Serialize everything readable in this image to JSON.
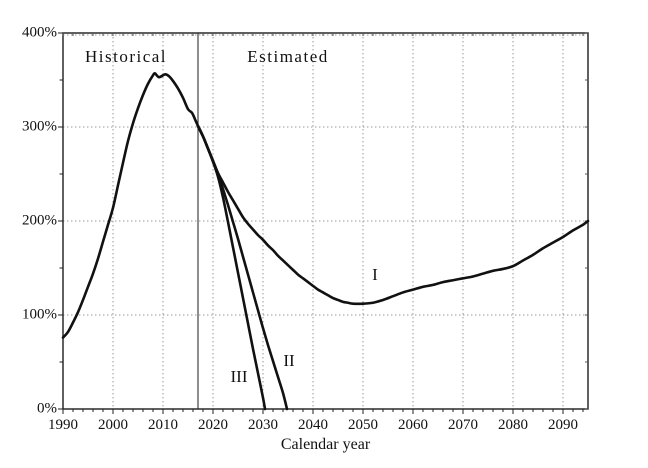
{
  "chart_data": {
    "type": "line",
    "title": "",
    "xlabel": "Calendar year",
    "ylabel": "",
    "x_range": [
      1990,
      2095
    ],
    "y_range": [
      0,
      400
    ],
    "x_ticks": [
      {
        "value": 1990,
        "label": "1990"
      },
      {
        "value": 2000,
        "label": "2000"
      },
      {
        "value": 2010,
        "label": "2010"
      },
      {
        "value": 2020,
        "label": "2020"
      },
      {
        "value": 2030,
        "label": "2030"
      },
      {
        "value": 2040,
        "label": "2040"
      },
      {
        "value": 2050,
        "label": "2050"
      },
      {
        "value": 2060,
        "label": "2060"
      },
      {
        "value": 2070,
        "label": "2070"
      },
      {
        "value": 2080,
        "label": "2080"
      },
      {
        "value": 2090,
        "label": "2090"
      }
    ],
    "y_ticks": [
      {
        "value": 0,
        "label": "0%"
      },
      {
        "value": 100,
        "label": "100%"
      },
      {
        "value": 200,
        "label": "200%"
      },
      {
        "value": 300,
        "label": "300%"
      },
      {
        "value": 400,
        "label": "400%"
      }
    ],
    "x_minor_tick_step": 2,
    "y_minor_tick_step": 50,
    "grid_x": [
      2000,
      2010,
      2020,
      2030,
      2040,
      2050,
      2060,
      2070,
      2080,
      2090
    ],
    "grid_y": [
      100,
      200,
      300,
      400
    ],
    "separator_year": 2017,
    "legend_position": "none",
    "grid_on": true,
    "region_labels": [
      {
        "id": "historical",
        "text": "Historical",
        "year": 2002.6,
        "pct": 374
      },
      {
        "id": "estimated",
        "text": "Estimated",
        "year": 2035.0,
        "pct": 374
      }
    ],
    "series": [
      {
        "name": "historical",
        "label": "",
        "points": [
          [
            1990,
            76
          ],
          [
            1991,
            82
          ],
          [
            1992,
            92
          ],
          [
            1993,
            103
          ],
          [
            1994,
            116
          ],
          [
            1995,
            130
          ],
          [
            1996,
            144
          ],
          [
            1997,
            160
          ],
          [
            1998,
            178
          ],
          [
            1999,
            196
          ],
          [
            2000,
            214
          ],
          [
            2001,
            238
          ],
          [
            2002,
            262
          ],
          [
            2003,
            285
          ],
          [
            2004,
            304
          ],
          [
            2005,
            320
          ],
          [
            2006,
            334
          ],
          [
            2007,
            346
          ],
          [
            2008,
            355
          ],
          [
            2008.4,
            357
          ],
          [
            2009.2,
            353
          ],
          [
            2010.4,
            356
          ],
          [
            2011.2,
            354
          ],
          [
            2012,
            349
          ],
          [
            2013,
            341
          ],
          [
            2014,
            331
          ],
          [
            2015,
            319
          ],
          [
            2015.8,
            315
          ],
          [
            2016.5,
            307
          ],
          [
            2017,
            301
          ]
        ]
      },
      {
        "name": "alternative-I",
        "label": "I",
        "label_pos": {
          "year": 2052.4,
          "pct": 143
        },
        "points": [
          [
            2017,
            301
          ],
          [
            2018,
            290
          ],
          [
            2019,
            277
          ],
          [
            2020,
            264
          ],
          [
            2021,
            251
          ],
          [
            2022,
            241
          ],
          [
            2023,
            231
          ],
          [
            2024,
            222
          ],
          [
            2025,
            213
          ],
          [
            2026,
            204
          ],
          [
            2027,
            197
          ],
          [
            2028,
            191
          ],
          [
            2029,
            185
          ],
          [
            2030,
            180
          ],
          [
            2031,
            174
          ],
          [
            2032,
            169
          ],
          [
            2033,
            163
          ],
          [
            2034,
            158
          ],
          [
            2035,
            153
          ],
          [
            2036,
            148
          ],
          [
            2037,
            143
          ],
          [
            2038,
            139
          ],
          [
            2039,
            135
          ],
          [
            2040,
            131
          ],
          [
            2041,
            127
          ],
          [
            2042,
            124
          ],
          [
            2043,
            121
          ],
          [
            2044,
            118
          ],
          [
            2045,
            116
          ],
          [
            2046,
            114
          ],
          [
            2047,
            113
          ],
          [
            2048,
            112
          ],
          [
            2050,
            112
          ],
          [
            2052,
            113
          ],
          [
            2054,
            116
          ],
          [
            2056,
            120
          ],
          [
            2058,
            124
          ],
          [
            2060,
            127
          ],
          [
            2062,
            130
          ],
          [
            2064,
            132
          ],
          [
            2066,
            135
          ],
          [
            2068,
            137
          ],
          [
            2070,
            139
          ],
          [
            2072,
            141
          ],
          [
            2074,
            144
          ],
          [
            2076,
            147
          ],
          [
            2078,
            149
          ],
          [
            2080,
            152
          ],
          [
            2082,
            158
          ],
          [
            2084,
            164
          ],
          [
            2086,
            171
          ],
          [
            2088,
            177
          ],
          [
            2090,
            183
          ],
          [
            2092,
            190
          ],
          [
            2094,
            196
          ],
          [
            2095,
            200
          ]
        ]
      },
      {
        "name": "alternative-II",
        "label": "II",
        "label_pos": {
          "year": 2035.2,
          "pct": 51
        },
        "points": [
          [
            2017,
            301
          ],
          [
            2018,
            290
          ],
          [
            2019,
            277
          ],
          [
            2020,
            264
          ],
          [
            2021,
            250
          ],
          [
            2022,
            234
          ],
          [
            2023,
            217
          ],
          [
            2024,
            199
          ],
          [
            2025,
            181
          ],
          [
            2026,
            162
          ],
          [
            2027,
            143
          ],
          [
            2028,
            124
          ],
          [
            2029,
            105
          ],
          [
            2030,
            86
          ],
          [
            2031,
            68
          ],
          [
            2032,
            51
          ],
          [
            2033,
            34
          ],
          [
            2034,
            17
          ],
          [
            2034.8,
            0
          ]
        ]
      },
      {
        "name": "alternative-III",
        "label": "III",
        "label_pos": {
          "year": 2025.2,
          "pct": 34
        },
        "points": [
          [
            2017,
            301
          ],
          [
            2018,
            290
          ],
          [
            2019,
            277
          ],
          [
            2020,
            263
          ],
          [
            2021,
            247
          ],
          [
            2022,
            225
          ],
          [
            2023,
            199
          ],
          [
            2024,
            172
          ],
          [
            2025,
            145
          ],
          [
            2026,
            118
          ],
          [
            2027,
            91
          ],
          [
            2028,
            64
          ],
          [
            2029,
            38
          ],
          [
            2030,
            12
          ],
          [
            2030.4,
            0
          ]
        ]
      }
    ],
    "line_color": "#111111",
    "grid_color": "#9a9a9a",
    "frame_color": "#2b2b2b",
    "separator_color": "#444444"
  }
}
